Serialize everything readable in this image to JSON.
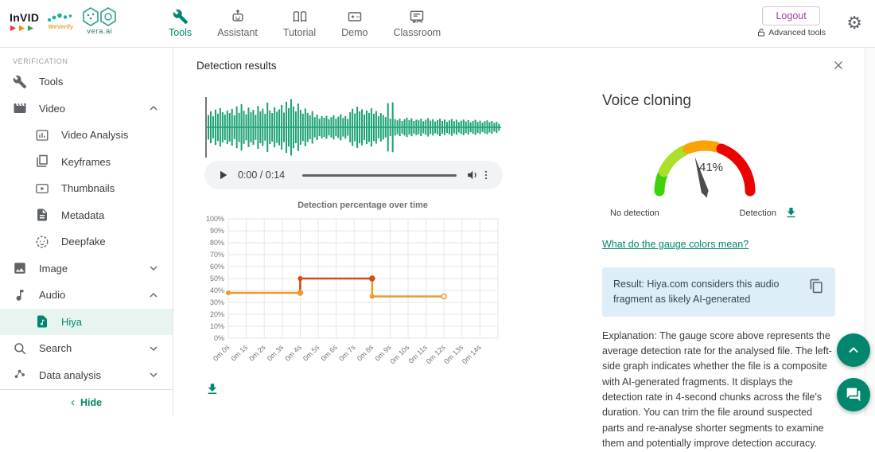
{
  "accent": "#00876d",
  "icons": {
    "gear": "⚙",
    "chevron_left": "‹"
  },
  "header": {
    "logo": {
      "invid": "InVID",
      "weverify": "WeVerify",
      "vera": "vera.ai"
    },
    "nav": [
      {
        "label": "Tools",
        "active": true
      },
      {
        "label": "Assistant",
        "active": false
      },
      {
        "label": "Tutorial",
        "active": false
      },
      {
        "label": "Demo",
        "active": false
      },
      {
        "label": "Classroom",
        "active": false
      }
    ],
    "logout_label": "Logout",
    "advanced_tools_label": "Advanced tools"
  },
  "sidebar": {
    "section_label": "VERIFICATION",
    "items": [
      {
        "label": "Tools"
      },
      {
        "label": "Video"
      },
      {
        "label": "Video Analysis"
      },
      {
        "label": "Keyframes"
      },
      {
        "label": "Thumbnails"
      },
      {
        "label": "Metadata"
      },
      {
        "label": "Deepfake"
      },
      {
        "label": "Image"
      },
      {
        "label": "Audio"
      },
      {
        "label": "Hiya"
      },
      {
        "label": "Search"
      },
      {
        "label": "Data analysis"
      }
    ],
    "hide_label": "Hide"
  },
  "main": {
    "title": "Detection results",
    "player": {
      "time": "0:00 / 0:14"
    },
    "waveform": {
      "color": "#1aa174",
      "amplitudes": [
        0.42,
        0.55,
        0.38,
        0.61,
        0.47,
        0.66,
        0.52,
        0.44,
        0.58,
        0.49,
        0.63,
        0.41,
        0.72,
        0.5,
        0.8,
        0.57,
        0.45,
        0.68,
        0.52,
        0.6,
        0.43,
        0.74,
        0.55,
        0.64,
        0.46,
        0.85,
        0.58,
        0.49,
        0.69,
        0.54,
        0.62,
        0.77,
        0.51,
        0.88,
        0.66,
        0.97,
        0.72,
        0.55,
        0.82,
        0.6,
        0.47,
        0.65,
        0.5,
        0.41,
        0.56,
        0.35,
        0.44,
        0.3,
        0.38,
        0.33,
        0.4,
        0.28,
        0.35,
        0.42,
        0.3,
        0.37,
        0.45,
        0.32,
        0.39,
        0.29,
        0.52,
        0.64,
        0.48,
        0.71,
        0.55,
        0.62,
        0.44,
        0.58,
        0.5,
        0.66,
        0.47,
        0.56,
        0.38,
        0.49,
        0.42,
        0.35,
        0.83,
        0.3,
        0.86,
        0.28,
        0.24,
        0.3,
        0.22,
        0.28,
        0.33,
        0.25,
        0.31,
        0.22,
        0.27,
        0.24,
        0.3,
        0.21,
        0.26,
        0.32,
        0.23,
        0.28,
        0.2,
        0.25,
        0.3,
        0.22,
        0.27,
        0.19,
        0.24,
        0.29,
        0.21,
        0.26,
        0.18,
        0.23,
        0.27,
        0.2,
        0.25,
        0.17,
        0.22,
        0.26,
        0.19,
        0.23,
        0.16,
        0.21,
        0.24,
        0.18,
        0.22,
        0.15,
        0.19,
        0.12
      ]
    }
  },
  "chart_data": {
    "type": "line",
    "title": "Detection percentage over time",
    "xlabel": "",
    "ylabel": "",
    "ylim": [
      0,
      100
    ],
    "y_tick_step": 10,
    "x_total_seconds": 15,
    "x_ticks": [
      "0m 0s",
      "0m 1s",
      "0m 2s",
      "0m 3s",
      "0m 4s",
      "0m 5s",
      "0m 6s",
      "0m 7s",
      "0m 8s",
      "0m 9s",
      "0m 10s",
      "0m 11s",
      "0m 12s",
      "0m 13s",
      "0m 14s"
    ],
    "grid": true,
    "legend": "none",
    "step_segments": [
      {
        "from_s": 0,
        "to_s": 4,
        "value_pct": 38,
        "color": "#f0992e"
      },
      {
        "from_s": 4,
        "to_s": 8,
        "value_pct": 50,
        "color": "#d9481c"
      },
      {
        "from_s": 8,
        "to_s": 12,
        "value_pct": 35,
        "color": "#f0992e"
      }
    ],
    "open_end_marker": true
  },
  "panel": {
    "title": "Voice cloning",
    "gauge": {
      "value": 41,
      "value_label": "41%",
      "left_label": "No detection",
      "right_label": "Detection",
      "needle_color": "#4d4d4d",
      "segments": [
        {
          "from": 0,
          "to": 11,
          "color": "#3ed10c"
        },
        {
          "from": 14,
          "to": 35,
          "color": "#a8e02a"
        },
        {
          "from": 38,
          "to": 58,
          "color": "#fba204"
        },
        {
          "from": 62,
          "to": 100,
          "color": "#ec0202"
        }
      ]
    },
    "link": "What do the gauge colors mean?",
    "result": "Result: Hiya.com considers this audio fragment as likely AI-generated",
    "explanation": "Explanation: The gauge score above represents the average detection rate for the analysed file. The left-side graph indicates whether the file is a composite with AI-generated fragments. It displays the detection rate in 4-second chunks across the file's duration. You can trim the file around suspected parts and re-analyse shorter segments to examine them and potentially improve detection accuracy."
  }
}
